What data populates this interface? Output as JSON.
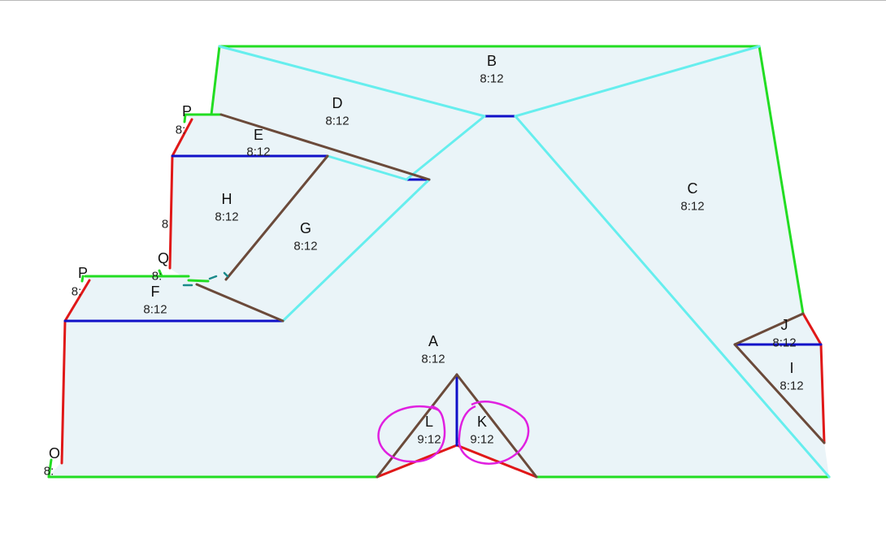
{
  "colors": {
    "roof_fill": "#eaf4f8",
    "eave": "#22dd22",
    "rake": "#e01818",
    "ridge": "#1010c8",
    "hip": "#66eeee",
    "valley": "#6b4a3a",
    "markup": "#e020e0",
    "flashing": "#1a8a8a",
    "text": "#111111"
  },
  "legend_types": [
    "eave",
    "rake",
    "ridge",
    "hip",
    "valley"
  ],
  "faces": [
    {
      "letter": "A",
      "pitch": "8:12"
    },
    {
      "letter": "B",
      "pitch": "8:12"
    },
    {
      "letter": "C",
      "pitch": "8:12"
    },
    {
      "letter": "D",
      "pitch": "8:12"
    },
    {
      "letter": "E",
      "pitch": "8:12"
    },
    {
      "letter": "F",
      "pitch": "8:12"
    },
    {
      "letter": "G",
      "pitch": "8:12"
    },
    {
      "letter": "H",
      "pitch": "8:12"
    },
    {
      "letter": "I",
      "pitch": "8:12"
    },
    {
      "letter": "J",
      "pitch": "8:12"
    },
    {
      "letter": "K",
      "pitch": "9:12"
    },
    {
      "letter": "L",
      "pitch": "9:12"
    },
    {
      "letter": "O",
      "pitch": "8:"
    },
    {
      "letter": "P",
      "pitch": "8:"
    },
    {
      "letter": "P",
      "pitch": "8:"
    },
    {
      "letter": "Q",
      "pitch": "8:"
    },
    {
      "letter": "",
      "pitch": "8"
    }
  ]
}
